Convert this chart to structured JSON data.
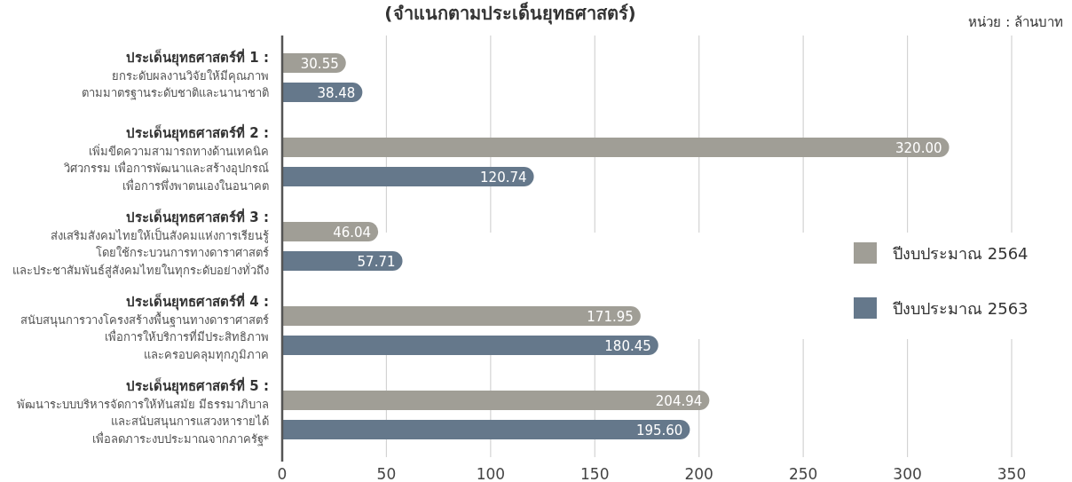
{
  "chart_data": {
    "type": "bar",
    "orientation": "horizontal",
    "title": "(จำแนกตามประเด็นยุทธศาสตร์)",
    "annotations": [
      "หน่วย : ล้านบาท"
    ],
    "categories": [
      "ประเด็นยุทธศาสตร์ที่ 1 :\nยกระดับผลงานวิจัยให้มีคุณภาพ\nตามมาตรฐานระดับชาติและนานาชาติ",
      "ประเด็นยุทธศาสตร์ที่ 2 :\nเพิ่มขีดความสามารถทางด้านเทคนิค\nวิศวกรรม เพื่อการพัฒนาและสร้างอุปกรณ์\nเพื่อการพึ่งพาตนเองในอนาคต",
      "ประเด็นยุทธศาสตร์ที่ 3 :\nส่งเสริมสังคมไทยให้เป็นสังคมแห่งการเรียนรู้\nโดยใช้กระบวนการทางดาราศาสตร์\nและประชาสัมพันธ์สู่สังคมไทยในทุกระดับอย่างทั่วถึง",
      "ประเด็นยุทธศาสตร์ที่ 4 :\nสนับสนุนการวางโครงสร้างพื้นฐานทางดาราศาสตร์\nเพื่อการให้บริการที่มีประสิทธิภาพ\nและครอบคลุมทุกภูมิภาค",
      "ประเด็นยุทธศาสตร์ที่ 5 :\nพัฒนาระบบบริหารจัดการให้ทันสมัย มีธรรมาภิบาล\nและสนับสนุนการแสวงหารายได้\nเพื่อลดภาระงบประมาณจากภาครัฐ*"
    ],
    "series": [
      {
        "name": "ปีงบประมาณ 2564",
        "color": "#a09e96",
        "values": [
          30.55,
          320.0,
          46.04,
          171.95,
          204.94
        ],
        "value_labels": [
          "30.55",
          "320.00",
          "46.04",
          "171.95",
          "204.94"
        ]
      },
      {
        "name": "ปีงบประมาณ 2563",
        "color": "#65788b",
        "values": [
          38.48,
          120.74,
          57.71,
          180.45,
          195.6
        ],
        "value_labels": [
          "38.48",
          "120.74",
          "57.71",
          "180.45",
          "195.60"
        ]
      }
    ],
    "xlim": [
      0,
      350
    ],
    "xticks": [
      0,
      50,
      100,
      150,
      200,
      250,
      300,
      350
    ],
    "grid": "x",
    "legend": "right"
  }
}
